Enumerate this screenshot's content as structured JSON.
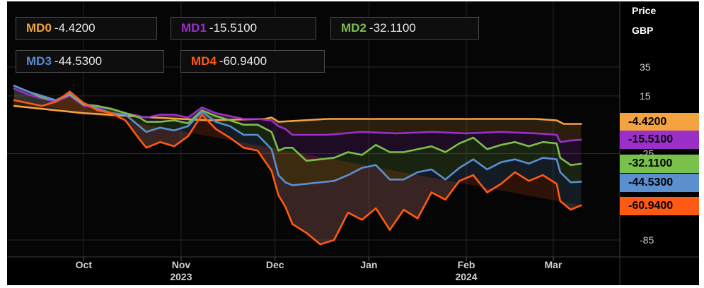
{
  "chart_data": {
    "type": "line",
    "price_label": "Price",
    "currency": "GBP",
    "yticks": [
      35,
      15,
      -25,
      -85
    ],
    "ylim": [
      -95,
      45
    ],
    "xlim": [
      0,
      166
    ],
    "month_ticks": [
      {
        "label": "Oct",
        "x": 20,
        "year": ""
      },
      {
        "label": "Nov",
        "x": 48,
        "year": "2023"
      },
      {
        "label": "Dec",
        "x": 75,
        "year": ""
      },
      {
        "label": "Jan",
        "x": 102,
        "year": ""
      },
      {
        "label": "Feb",
        "x": 130,
        "year": "2024"
      },
      {
        "label": "Mar",
        "x": 155,
        "year": ""
      }
    ],
    "series": [
      {
        "name": "MD0",
        "last": "-4.4200",
        "color": "#f4a340",
        "x": [
          0,
          20,
          40,
          56,
          72,
          74,
          76,
          90,
          110,
          130,
          150,
          156,
          158,
          163
        ],
        "y": [
          8,
          3,
          0,
          -2,
          -1,
          0,
          -3,
          -1,
          -1,
          -1,
          -1,
          -2,
          -4.42,
          -4.42
        ]
      },
      {
        "name": "MD1",
        "last": "-15.5100",
        "color": "#9a30c8",
        "x": [
          0,
          4,
          8,
          12,
          16,
          20,
          24,
          28,
          32,
          36,
          38,
          42,
          46,
          50,
          54,
          58,
          62,
          66,
          70,
          74,
          76,
          78,
          80,
          90,
          100,
          110,
          120,
          130,
          140,
          150,
          156,
          157,
          160,
          163
        ],
        "y": [
          20,
          16,
          13,
          11,
          15,
          8,
          7,
          6,
          3,
          1,
          0,
          2,
          2,
          0,
          7,
          3,
          1,
          -1,
          -1,
          -2,
          -6,
          -8,
          -12,
          -12,
          -10,
          -11,
          -10,
          -11,
          -10,
          -11,
          -12,
          -17,
          -16,
          -15.51
        ]
      },
      {
        "name": "MD2",
        "last": "-32.1100",
        "color": "#7ac04c",
        "x": [
          0,
          4,
          8,
          12,
          16,
          20,
          24,
          28,
          32,
          36,
          38,
          42,
          46,
          50,
          54,
          58,
          62,
          66,
          70,
          74,
          76,
          78,
          80,
          84,
          88,
          92,
          96,
          100,
          104,
          108,
          112,
          116,
          120,
          124,
          128,
          132,
          136,
          140,
          144,
          148,
          152,
          156,
          157,
          160,
          163
        ],
        "y": [
          22,
          18,
          14,
          12,
          16,
          9,
          8,
          6,
          3,
          0,
          -3,
          -3,
          -2,
          -4,
          5,
          1,
          -2,
          -5,
          -5,
          -10,
          -23,
          -21,
          -21,
          -30,
          -29,
          -28,
          -24,
          -26,
          -19,
          -24,
          -24,
          -22,
          -20,
          -24,
          -18,
          -14,
          -22,
          -19,
          -17,
          -20,
          -17,
          -18,
          -28,
          -33,
          -32.11
        ]
      },
      {
        "name": "MD3",
        "last": "-44.5300",
        "color": "#5b8fd0",
        "x": [
          0,
          4,
          8,
          12,
          16,
          20,
          24,
          28,
          32,
          36,
          38,
          42,
          46,
          50,
          54,
          58,
          62,
          66,
          70,
          74,
          76,
          78,
          80,
          84,
          88,
          92,
          96,
          100,
          104,
          108,
          112,
          116,
          120,
          124,
          128,
          132,
          136,
          140,
          144,
          148,
          152,
          156,
          157,
          160,
          163
        ],
        "y": [
          22,
          18,
          15,
          12,
          17,
          10,
          6,
          3,
          2,
          -6,
          -10,
          -7,
          -9,
          -6,
          4,
          -3,
          -6,
          -12,
          -12,
          -22,
          -40,
          -45,
          -47,
          -46,
          -45,
          -44,
          -40,
          -35,
          -33,
          -43,
          -43,
          -38,
          -36,
          -43,
          -35,
          -29,
          -36,
          -31,
          -29,
          -32,
          -28,
          -29,
          -38,
          -45,
          -44.53
        ]
      },
      {
        "name": "MD4",
        "last": "-60.9400",
        "color": "#ff5a14",
        "x": [
          0,
          4,
          8,
          12,
          16,
          20,
          24,
          28,
          32,
          36,
          38,
          42,
          46,
          50,
          54,
          58,
          62,
          66,
          70,
          74,
          76,
          78,
          80,
          84,
          88,
          92,
          96,
          100,
          104,
          108,
          112,
          116,
          120,
          124,
          128,
          132,
          136,
          140,
          144,
          148,
          152,
          156,
          157,
          160,
          163
        ],
        "y": [
          12,
          10,
          8,
          11,
          18,
          10,
          5,
          3,
          -2,
          -15,
          -21,
          -17,
          -20,
          -13,
          2,
          -8,
          -14,
          -21,
          -23,
          -37,
          -54,
          -62,
          -74,
          -80,
          -88,
          -85,
          -66,
          -71,
          -63,
          -78,
          -64,
          -70,
          -52,
          -57,
          -44,
          -40,
          -52,
          -46,
          -38,
          -44,
          -40,
          -46,
          -58,
          -64,
          -60.94
        ]
      }
    ]
  }
}
